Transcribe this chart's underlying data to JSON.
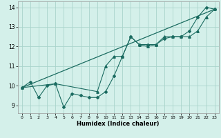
{
  "xlabel": "Humidex (Indice chaleur)",
  "bg_color": "#d4f0ea",
  "line_color": "#1a6b60",
  "grid_color": "#aad4cc",
  "series1_x": [
    0,
    1,
    2,
    3,
    4,
    5,
    6,
    7,
    8,
    9,
    10,
    11,
    12,
    13,
    14,
    15,
    16,
    17,
    18,
    19,
    20,
    21,
    22,
    23
  ],
  "series1_y": [
    9.9,
    10.2,
    9.4,
    10.0,
    10.1,
    8.9,
    9.6,
    9.5,
    9.4,
    9.4,
    9.7,
    10.5,
    11.5,
    12.5,
    12.1,
    12.1,
    12.1,
    12.4,
    12.5,
    12.5,
    12.8,
    13.5,
    14.0,
    13.9
  ],
  "series2_x": [
    0,
    4,
    9,
    10,
    11,
    12,
    13,
    14,
    15,
    16,
    17,
    18,
    19,
    20,
    21,
    22,
    23
  ],
  "series2_y": [
    9.9,
    10.1,
    9.7,
    11.0,
    11.5,
    11.5,
    12.5,
    12.1,
    12.0,
    12.1,
    12.5,
    12.5,
    12.5,
    12.5,
    12.8,
    13.5,
    13.9
  ],
  "series3_x": [
    0,
    23
  ],
  "series3_y": [
    9.9,
    13.9
  ],
  "xlim": [
    -0.5,
    23.5
  ],
  "ylim": [
    8.6,
    14.3
  ],
  "xticks": [
    0,
    1,
    2,
    3,
    4,
    5,
    6,
    7,
    8,
    9,
    10,
    11,
    12,
    13,
    14,
    15,
    16,
    17,
    18,
    19,
    20,
    21,
    22,
    23
  ],
  "yticks": [
    9,
    10,
    11,
    12,
    13,
    14
  ]
}
